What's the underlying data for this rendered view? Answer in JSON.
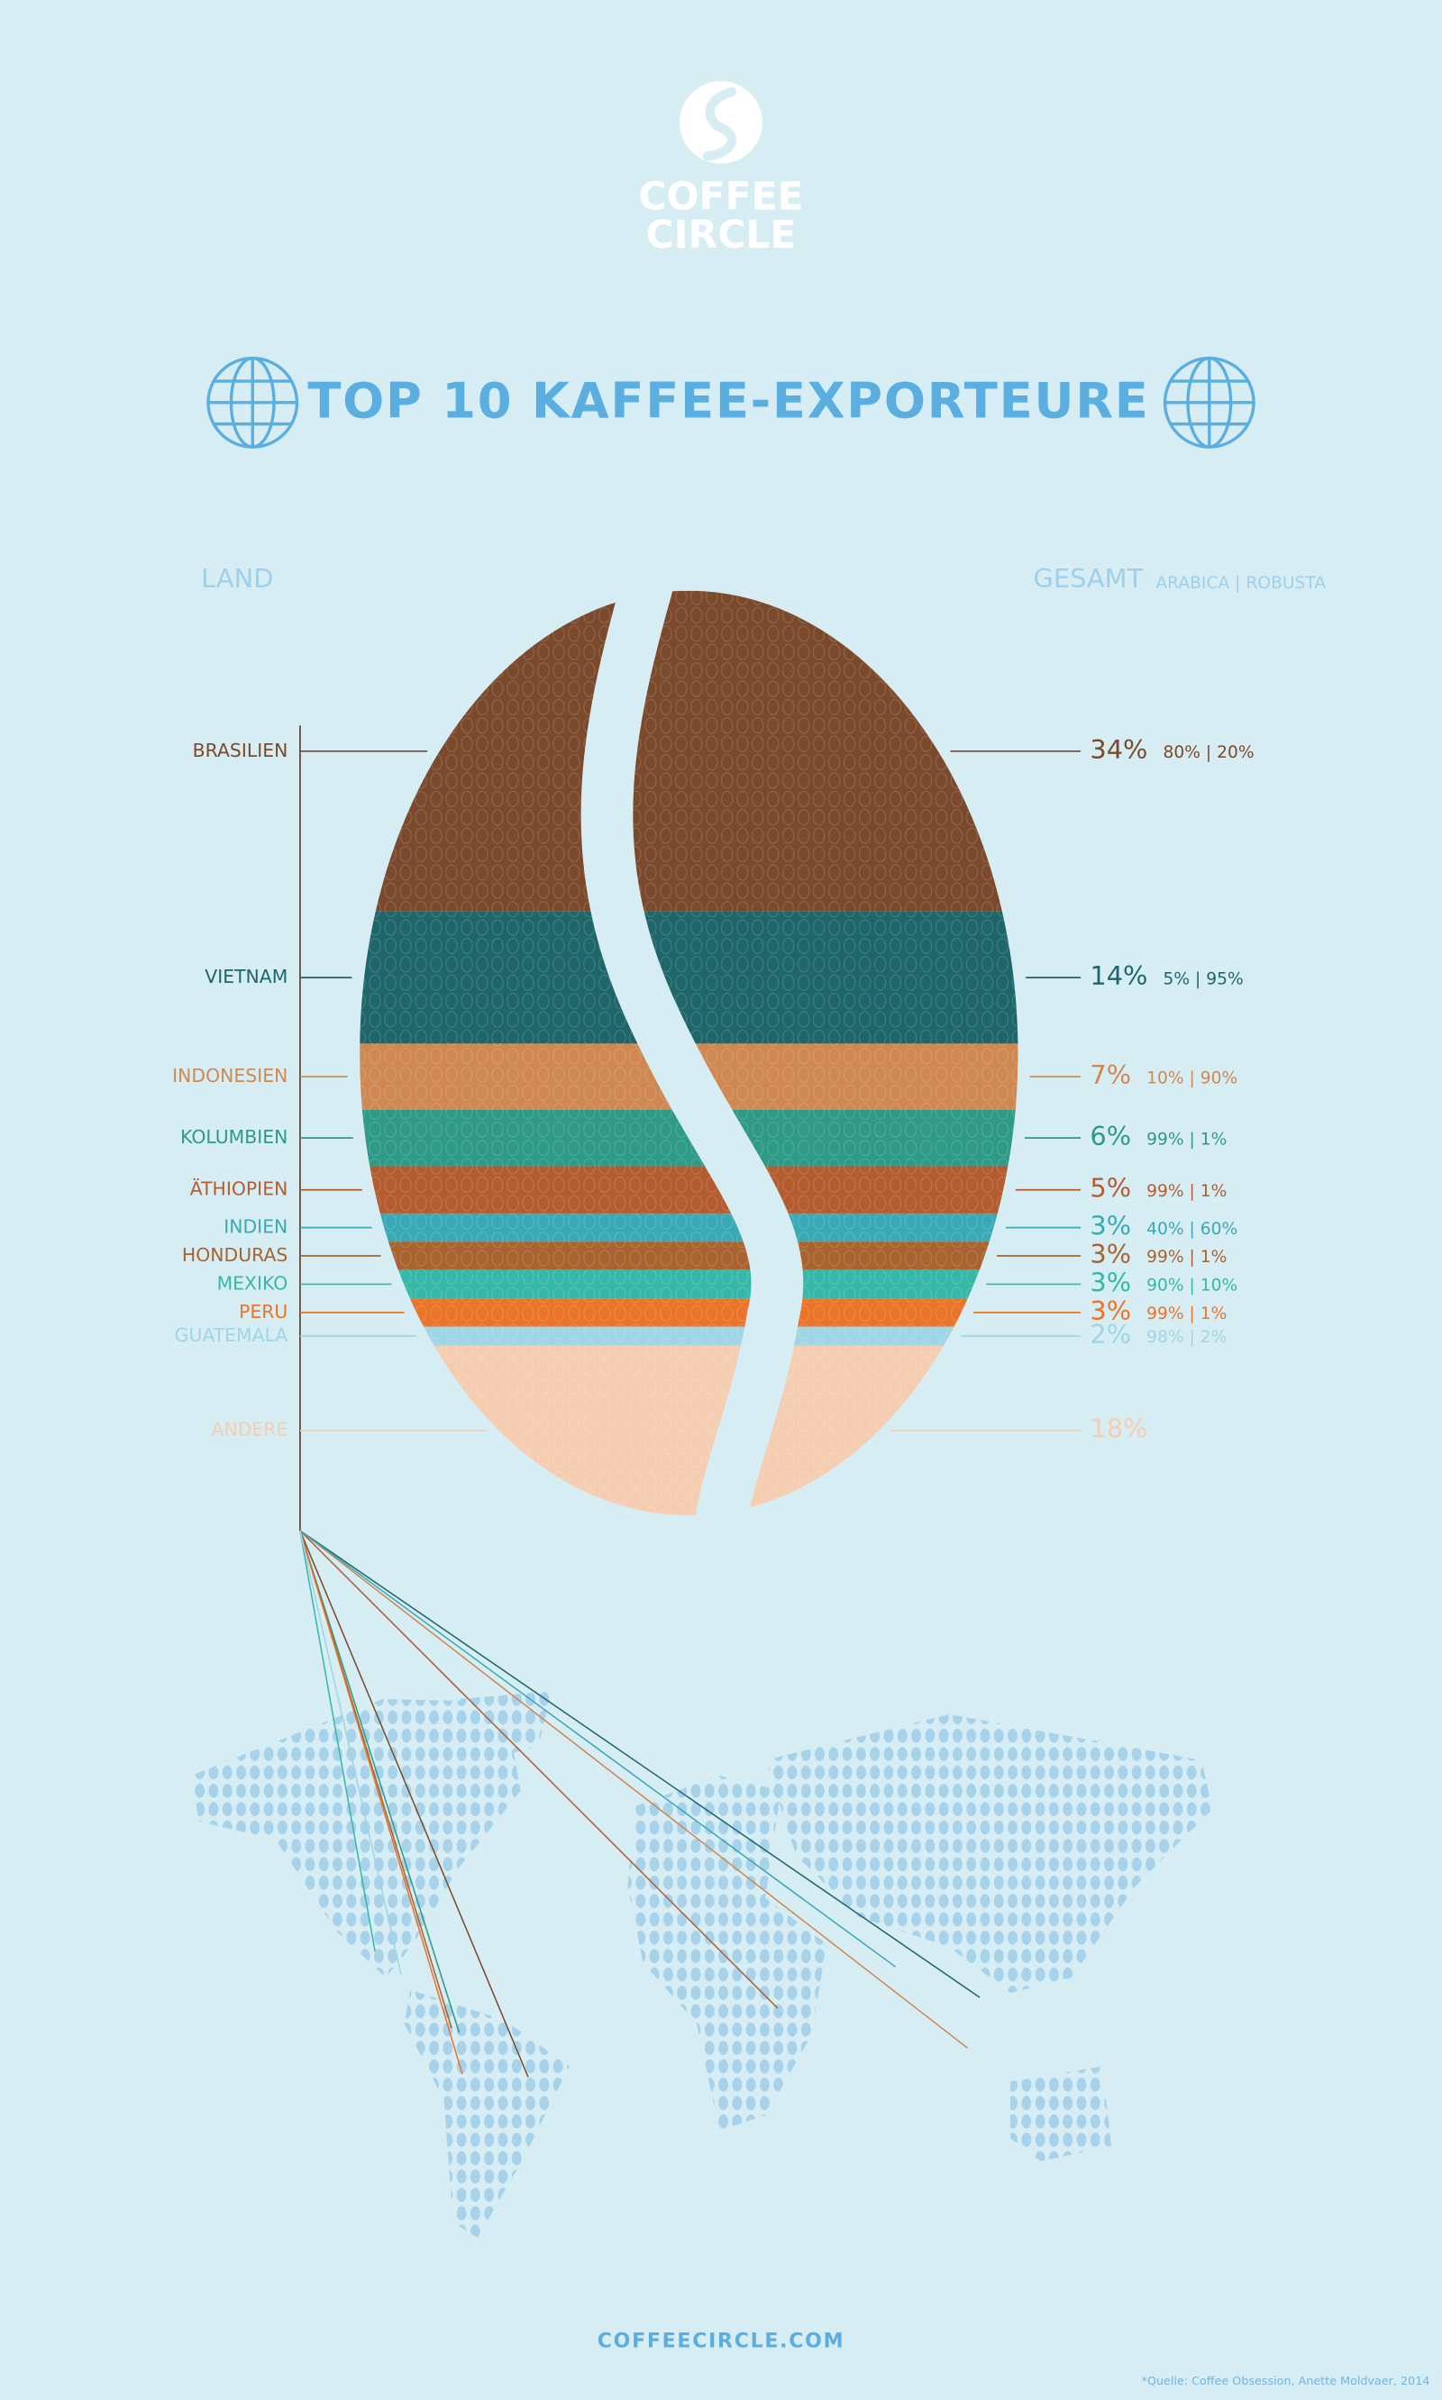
{
  "logo": {
    "line1": "COFFEE",
    "line2": "CIRCLE"
  },
  "chart_data": {
    "type": "bean",
    "title": "TOP 10 KAFFEE-EXPORTEURE",
    "header_left": "LAND",
    "header_total": "GESAMT",
    "header_split": "ARABICA | ROBUSTA",
    "categories": [
      "BRASILIEN",
      "VIETNAM",
      "INDONESIEN",
      "KOLUMBIEN",
      "ÄTHIOPIEN",
      "INDIEN",
      "HONDURAS",
      "MEXIKO",
      "PERU",
      "GUATEMALA",
      "ANDERE"
    ],
    "values": [
      34,
      14,
      7,
      6,
      5,
      3,
      3,
      3,
      3,
      2,
      18
    ],
    "value_labels": [
      "34%",
      "14%",
      "7%",
      "6%",
      "5%",
      "3%",
      "3%",
      "3%",
      "3%",
      "2%",
      "18%"
    ],
    "split_labels": [
      "80% | 20%",
      "5% | 95%",
      "10% | 90%",
      "99% | 1%",
      "99% | 1%",
      "40% | 60%",
      "99% | 1%",
      "90% | 10%",
      "99% | 1%",
      "98% | 2%",
      null
    ],
    "colors": [
      "#7b4a2c",
      "#1f666b",
      "#cf8852",
      "#2f9a88",
      "#b45c30",
      "#3aa9b6",
      "#a9632f",
      "#36b8a9",
      "#ea7429",
      "#9fd5e4",
      "#f5cdb1"
    ]
  },
  "footer": {
    "url": "COFFEECIRCLE.COM",
    "source": "*Quelle: Coffee Obsession, Anette Moldvaer, 2014"
  }
}
